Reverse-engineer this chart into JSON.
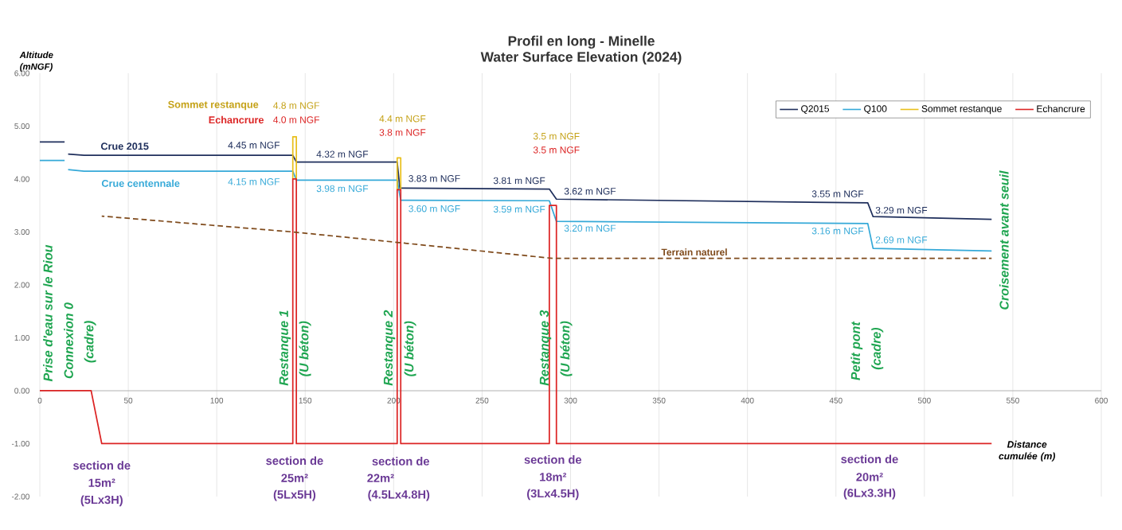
{
  "chart_data": {
    "type": "line",
    "title": "Profil en long - Minelle",
    "subtitle": "Water Surface Elevation (2024)",
    "xlabel": "Distance cumulée (m)",
    "ylabel": "Altitude (mNGF)",
    "xlim": [
      0,
      600
    ],
    "ylim": [
      -2,
      6
    ],
    "xticks": [
      0,
      50,
      100,
      150,
      200,
      250,
      300,
      350,
      400,
      450,
      500,
      550,
      600
    ],
    "yticks": [
      {
        "value": -2,
        "label": "-2.00"
      },
      {
        "value": -1,
        "label": "-1.00"
      },
      {
        "value": 0,
        "label": "0.00"
      },
      {
        "value": 1,
        "label": "1.00"
      },
      {
        "value": 2,
        "label": "2.00"
      },
      {
        "value": 3,
        "label": "3.00"
      },
      {
        "value": 4,
        "label": "4.00"
      },
      {
        "value": 5,
        "label": "5.00"
      },
      {
        "value": 6,
        "label": "6.00"
      }
    ],
    "grid": "x",
    "legend": "top right",
    "series": [
      {
        "name": "Q2015",
        "color": "#1f2f5c",
        "x": [
          0,
          14,
          15,
          16,
          25,
          143,
          145,
          202,
          203.5,
          288,
          292,
          468,
          471,
          538
        ],
        "values": [
          4.7,
          4.7,
          null,
          4.47,
          4.45,
          4.45,
          4.32,
          4.32,
          3.83,
          3.81,
          3.62,
          3.55,
          3.29,
          3.24
        ]
      },
      {
        "name": "Q100",
        "color": "#35a9d8",
        "x": [
          0,
          14,
          15,
          16,
          25,
          143,
          145,
          202,
          204,
          288,
          292,
          468,
          471,
          538
        ],
        "values": [
          4.35,
          4.35,
          null,
          4.18,
          4.15,
          4.15,
          3.98,
          3.98,
          3.6,
          3.59,
          3.2,
          3.16,
          2.69,
          2.64
        ]
      },
      {
        "name": "Sommet restanque",
        "color": "#e8bf1c",
        "x": [
          143,
          143,
          145,
          145,
          173,
          202,
          202,
          204,
          204
        ],
        "values": [
          4.0,
          4.8,
          4.8,
          4.0,
          null,
          3.8,
          4.4,
          4.4,
          3.8
        ]
      },
      {
        "name": "Echancrure",
        "color": "#dc2424",
        "x": [
          0,
          29,
          35,
          143,
          143,
          145,
          145,
          202,
          202,
          204,
          204,
          288,
          288,
          292,
          292,
          538
        ],
        "values": [
          0,
          0,
          -1,
          -1,
          4.0,
          4.0,
          -1,
          -1,
          3.8,
          3.8,
          -1,
          -1,
          3.5,
          3.5,
          -1,
          -1
        ]
      },
      {
        "name": "Terrain naturel",
        "color": "#7f4a1b",
        "line_style": "dashed",
        "x": [
          35,
          143,
          203,
          290,
          538
        ],
        "values": [
          3.3,
          3.0,
          2.8,
          2.5,
          2.5
        ]
      }
    ],
    "annotations": [
      "Crue 2015",
      "Crue centennale",
      "4.45 m NGF",
      "4.15 m NGF",
      "4.32 m NGF",
      "3.98 m NGF",
      "3.83 m NGF",
      "3.60 m NGF",
      "3.81 m NGF",
      "3.59 m NGF",
      "3.62 m NGF",
      "3.20 m NGF",
      "3.55 m NGF",
      "3.16 m NGF",
      "3.29 m NGF",
      "2.69 m NGF",
      "Sommet restanque",
      "4.8 m NGF",
      "Echancrure",
      "4.0 m NGF",
      "4.4 m NGF",
      "3.8 m NGF",
      "3.5 m NGF",
      "3.5 m NGF",
      "Prise d'eau sur le Riou",
      "Connexion 0",
      "(cadre)",
      "Restanque 1",
      "(U béton)",
      "Restanque 2",
      "(U béton)",
      "Restanque 3",
      "(U béton)",
      "Petit pont",
      "(cadre)",
      "Croisement avant seuil",
      "section de",
      "15m²",
      "(5Lx3H)",
      "section de",
      "25m²",
      "(5Lx5H)",
      "section de",
      "22m²",
      "(4.5Lx4.8H)",
      "section de",
      "18m²",
      "(3Lx4.5H)",
      "section de",
      "20m²",
      "(6Lx3.3H)"
    ]
  }
}
